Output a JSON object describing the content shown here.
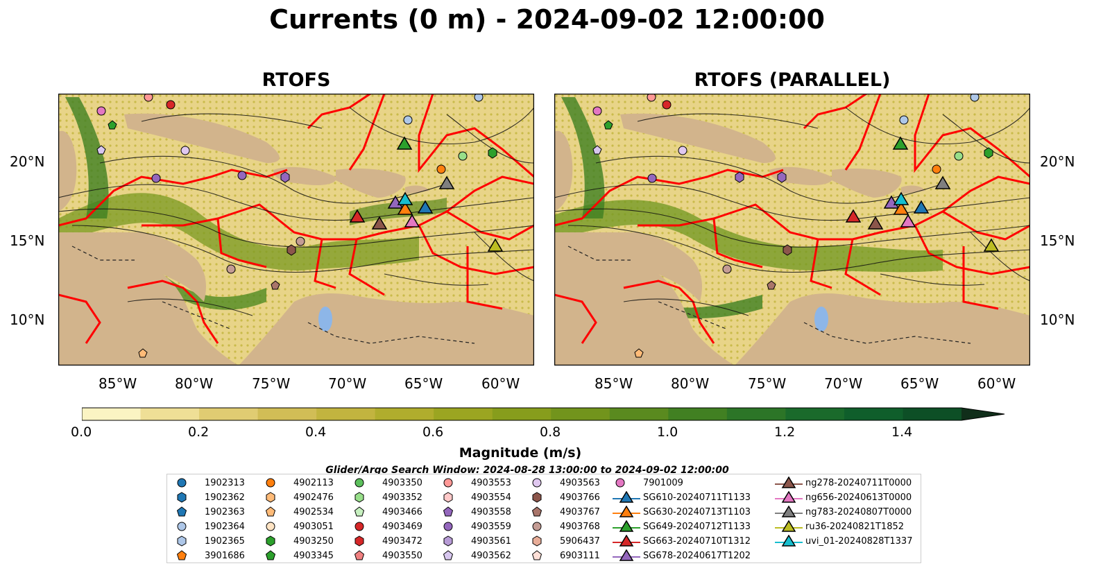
{
  "title": "Currents (0 m) - 2024-09-02 12:00:00",
  "panels": [
    {
      "title": "RTOFS"
    },
    {
      "title": "RTOFS (PARALLEL)"
    }
  ],
  "axes": {
    "lat_labels": [
      "20°N",
      "15°N",
      "10°N"
    ],
    "lon_labels": [
      "85°W",
      "80°W",
      "75°W",
      "70°W",
      "65°W",
      "60°W"
    ]
  },
  "colorbar": {
    "label": "Magnitude (m/s)",
    "ticks": [
      "0.0",
      "0.2",
      "0.4",
      "0.6",
      "0.8",
      "1.0",
      "1.2",
      "1.4"
    ],
    "range": [
      0.0,
      1.5
    ],
    "extend": "max",
    "colors": [
      "#fbf4c3",
      "#efdf96",
      "#e0cc72",
      "#d1bd56",
      "#c2b43f",
      "#b0ad2d",
      "#9ba521",
      "#879d1c",
      "#72941c",
      "#5a8a1f",
      "#418022",
      "#2c7527",
      "#1a6a2b",
      "#0f5e2b",
      "#0d4f26",
      "#0e3e20",
      "#102e1a"
    ]
  },
  "search_window": "Glider/Argo Search Window: 2024-08-28 13:00:00 to 2024-09-02 12:00:00",
  "legend": {
    "columns": [
      [
        {
          "label": "1902313",
          "marker": "circle",
          "color": "#1f77b4"
        },
        {
          "label": "1902362",
          "marker": "hexagon",
          "color": "#1f77b4"
        },
        {
          "label": "1902363",
          "marker": "pentagon",
          "color": "#1f77b4"
        },
        {
          "label": "1902364",
          "marker": "circle",
          "color": "#aec7e8"
        },
        {
          "label": "1902365",
          "marker": "hexagon",
          "color": "#aec7e8"
        },
        {
          "label": "3901686",
          "marker": "pentagon",
          "color": "#ff7f0e"
        }
      ],
      [
        {
          "label": "4902113",
          "marker": "circle",
          "color": "#ff7f0e"
        },
        {
          "label": "4902476",
          "marker": "hexagon",
          "color": "#ffbb78"
        },
        {
          "label": "4902534",
          "marker": "pentagon",
          "color": "#ffbb78"
        },
        {
          "label": "4903051",
          "marker": "circle",
          "color": "#ffe4c4"
        },
        {
          "label": "4903250",
          "marker": "hexagon",
          "color": "#2ca02c"
        },
        {
          "label": "4903345",
          "marker": "pentagon",
          "color": "#2ca02c"
        }
      ],
      [
        {
          "label": "4903350",
          "marker": "circle",
          "color": "#5cbf5c"
        },
        {
          "label": "4903352",
          "marker": "hexagon",
          "color": "#98df8a"
        },
        {
          "label": "4903466",
          "marker": "pentagon",
          "color": "#c7f0c0"
        },
        {
          "label": "4903469",
          "marker": "circle",
          "color": "#d62728"
        },
        {
          "label": "4903472",
          "marker": "hexagon",
          "color": "#d62728"
        },
        {
          "label": "4903550",
          "marker": "pentagon",
          "color": "#f08080"
        }
      ],
      [
        {
          "label": "4903553",
          "marker": "circle",
          "color": "#ff9896"
        },
        {
          "label": "4903554",
          "marker": "hexagon",
          "color": "#ffc9c9"
        },
        {
          "label": "4903558",
          "marker": "pentagon",
          "color": "#9467bd"
        },
        {
          "label": "4903559",
          "marker": "circle",
          "color": "#9467bd"
        },
        {
          "label": "4903561",
          "marker": "hexagon",
          "color": "#b79bd6"
        },
        {
          "label": "4903562",
          "marker": "pentagon",
          "color": "#d8c7ef"
        }
      ],
      [
        {
          "label": "4903563",
          "marker": "circle",
          "color": "#e0c8f0"
        },
        {
          "label": "4903766",
          "marker": "hexagon",
          "color": "#8c564b"
        },
        {
          "label": "4903767",
          "marker": "pentagon",
          "color": "#a9756a"
        },
        {
          "label": "4903768",
          "marker": "circle",
          "color": "#c49c94"
        },
        {
          "label": "5906437",
          "marker": "hexagon",
          "color": "#e8ad98"
        },
        {
          "label": "6903111",
          "marker": "pentagon",
          "color": "#ffe0d8"
        }
      ],
      [
        {
          "label": "7901009",
          "marker": "circle",
          "color": "#e377c2"
        },
        {
          "label": "SG610-20240711T1133",
          "marker": "triangle",
          "color": "#1f77b4"
        },
        {
          "label": "SG630-20240713T1103",
          "marker": "triangle",
          "color": "#ff7f0e"
        },
        {
          "label": "SG649-20240712T1133",
          "marker": "triangle",
          "color": "#2ca02c"
        },
        {
          "label": "SG663-20240710T1312",
          "marker": "triangle",
          "color": "#d62728"
        },
        {
          "label": "SG678-20240617T1202",
          "marker": "triangle",
          "color": "#9467bd"
        }
      ],
      [
        {
          "label": "ng278-20240711T0000",
          "marker": "triangle",
          "color": "#8c564b"
        },
        {
          "label": "ng656-20240613T0000",
          "marker": "triangle",
          "color": "#e377c2"
        },
        {
          "label": "ng783-20240807T0000",
          "marker": "triangle",
          "color": "#7f7f7f"
        },
        {
          "label": "ru36-20240821T1852",
          "marker": "triangle",
          "color": "#bcbd22"
        },
        {
          "label": "uvi_01-20240828T1337",
          "marker": "triangle",
          "color": "#17becf"
        }
      ]
    ]
  },
  "colors": {
    "land": "#d2b48c",
    "eez": "#ff0000",
    "lake": "#8db6e8",
    "river": "#a8c4e0"
  }
}
